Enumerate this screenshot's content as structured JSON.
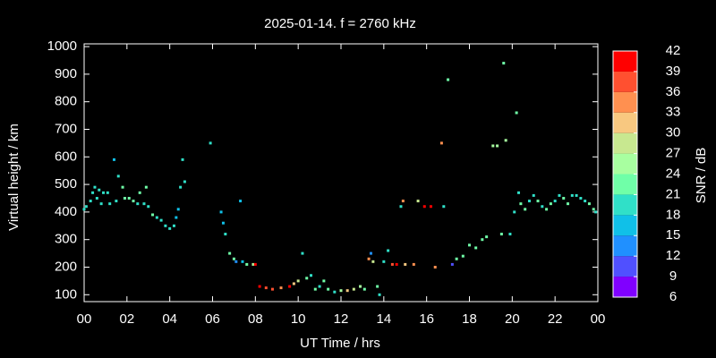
{
  "chart_data": {
    "type": "scatter",
    "title": "2025-01-14. f = 2760 kHz",
    "x_label": "UT Time / hrs",
    "y_label": "Virtual height / km",
    "colorbar_label": "SNR / dB",
    "x": [
      0.0,
      0.1,
      0.3,
      0.4,
      0.5,
      0.6,
      0.7,
      0.8,
      0.9,
      1.1,
      1.2,
      1.4,
      1.5,
      1.6,
      1.8,
      1.9,
      2.1,
      2.3,
      2.5,
      2.6,
      2.8,
      2.9,
      3.0,
      3.2,
      3.4,
      3.6,
      3.8,
      4.0,
      4.2,
      4.3,
      4.4,
      4.5,
      4.6,
      4.7,
      5.9,
      6.4,
      6.5,
      6.6,
      6.8,
      7.0,
      7.1,
      7.3,
      7.4,
      7.6,
      7.9,
      8.0,
      8.2,
      8.5,
      8.8,
      9.2,
      9.6,
      9.8,
      10.0,
      10.2,
      10.4,
      10.6,
      10.8,
      11.0,
      11.2,
      11.4,
      11.7,
      12.0,
      12.3,
      12.6,
      12.9,
      13.1,
      13.3,
      13.4,
      13.5,
      13.7,
      13.8,
      14.0,
      14.2,
      14.4,
      14.6,
      14.8,
      14.9,
      15.0,
      15.4,
      15.6,
      15.9,
      16.2,
      16.4,
      16.7,
      16.8,
      17.0,
      17.2,
      17.4,
      17.7,
      18.0,
      18.3,
      18.6,
      18.8,
      19.1,
      19.3,
      19.5,
      19.6,
      19.7,
      19.9,
      20.1,
      20.2,
      20.3,
      20.4,
      20.6,
      20.8,
      21.0,
      21.2,
      21.4,
      21.6,
      21.8,
      22.0,
      22.2,
      22.4,
      22.6,
      22.8,
      23.0,
      23.2,
      23.4,
      23.6,
      23.8,
      23.9
    ],
    "values": [
      410,
      420,
      440,
      470,
      490,
      450,
      480,
      430,
      470,
      470,
      430,
      590,
      440,
      530,
      490,
      450,
      450,
      440,
      430,
      470,
      430,
      490,
      420,
      390,
      380,
      370,
      350,
      340,
      350,
      380,
      410,
      490,
      590,
      510,
      650,
      400,
      360,
      320,
      250,
      230,
      220,
      440,
      220,
      210,
      210,
      210,
      130,
      125,
      120,
      125,
      130,
      140,
      150,
      250,
      160,
      170,
      120,
      130,
      150,
      120,
      110,
      115,
      115,
      120,
      130,
      120,
      230,
      250,
      220,
      130,
      100,
      220,
      260,
      210,
      210,
      420,
      440,
      210,
      210,
      440,
      420,
      420,
      200,
      650,
      420,
      880,
      210,
      230,
      240,
      280,
      270,
      300,
      310,
      640,
      640,
      320,
      940,
      660,
      320,
      400,
      760,
      470,
      430,
      410,
      440,
      460,
      440,
      420,
      410,
      430,
      440,
      460,
      450,
      430,
      460,
      460,
      450,
      440,
      430,
      410,
      400
    ],
    "snr": [
      18,
      18,
      18,
      18,
      18,
      18,
      18,
      18,
      18,
      18,
      18,
      16,
      18,
      18,
      21,
      22,
      22,
      21,
      20,
      21,
      18,
      21,
      20,
      22,
      20,
      20,
      19,
      18,
      18,
      16,
      16,
      18,
      20,
      19,
      18,
      16,
      16,
      18,
      21,
      21,
      12,
      16,
      15,
      21,
      24,
      39,
      39,
      36,
      36,
      33,
      39,
      30,
      27,
      20,
      21,
      20,
      21,
      20,
      22,
      21,
      20,
      24,
      30,
      28,
      24,
      22,
      33,
      12,
      27,
      22,
      20,
      20,
      18,
      36,
      39,
      18,
      33,
      30,
      33,
      27,
      39,
      39,
      33,
      33,
      18,
      21,
      9,
      21,
      22,
      22,
      22,
      22,
      22,
      24,
      25,
      22,
      21,
      24,
      20,
      18,
      21,
      18,
      22,
      22,
      20,
      18,
      22,
      20,
      22,
      22,
      20,
      20,
      22,
      22,
      18,
      18,
      18,
      20,
      22,
      22,
      20
    ],
    "xlim": [
      0,
      24
    ],
    "ylim": [
      75,
      1010
    ],
    "xticks": [
      {
        "value": 0,
        "label": "00"
      },
      {
        "value": 2,
        "label": "02"
      },
      {
        "value": 4,
        "label": "04"
      },
      {
        "value": 6,
        "label": "06"
      },
      {
        "value": 8,
        "label": "08"
      },
      10,
      12,
      14,
      16,
      18,
      20,
      22,
      {
        "value": 24,
        "label": "00"
      }
    ],
    "yticks": [
      100,
      200,
      300,
      400,
      500,
      600,
      700,
      800,
      900,
      1000
    ],
    "clim": [
      6,
      42
    ],
    "cticks": [
      6,
      9,
      12,
      15,
      18,
      21,
      24,
      27,
      30,
      33,
      36,
      39,
      42
    ],
    "colormap": [
      "#8000ff",
      "#5050ff",
      "#2090ff",
      "#10c0e8",
      "#30e0c8",
      "#70ffa8",
      "#a8ffa0",
      "#c8e890",
      "#f8c880",
      "#ff9050",
      "#ff5030",
      "#ff0000"
    ]
  }
}
